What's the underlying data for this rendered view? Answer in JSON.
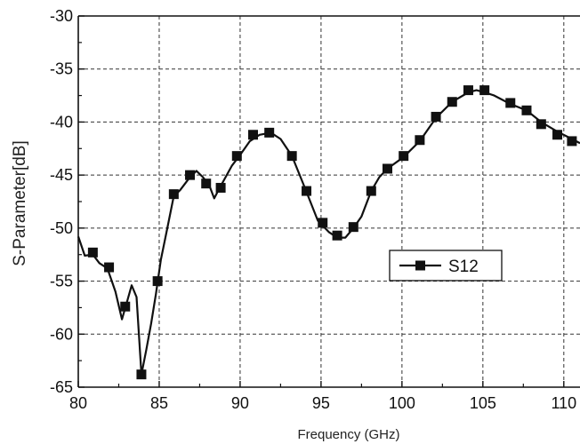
{
  "chart_data": {
    "type": "line",
    "xlabel": "Frequency (GHz)",
    "ylabel": "S-Parameter[dB]",
    "xlim": [
      80,
      111
    ],
    "ylim": [
      -65,
      -30
    ],
    "x_ticks": [
      80,
      85,
      90,
      95,
      100,
      105,
      110
    ],
    "y_ticks": [
      -30,
      -35,
      -40,
      -45,
      -50,
      -55,
      -60,
      -65
    ],
    "grid": true,
    "legend": "center-right",
    "series": [
      {
        "name": "S12",
        "color": "#111111",
        "line": [
          [
            80.0,
            -50.8
          ],
          [
            80.4,
            -52.6
          ],
          [
            80.9,
            -52.5
          ],
          [
            81.3,
            -53.3
          ],
          [
            81.8,
            -53.8
          ],
          [
            82.3,
            -56.0
          ],
          [
            82.7,
            -58.6
          ],
          [
            83.0,
            -57.0
          ],
          [
            83.3,
            -55.4
          ],
          [
            83.6,
            -56.5
          ],
          [
            83.9,
            -63.8
          ],
          [
            84.2,
            -61.5
          ],
          [
            84.5,
            -59.0
          ],
          [
            84.8,
            -56.2
          ],
          [
            85.1,
            -53.0
          ],
          [
            85.5,
            -50.0
          ],
          [
            85.9,
            -47.0
          ],
          [
            86.3,
            -46.4
          ],
          [
            86.8,
            -45.4
          ],
          [
            87.3,
            -44.6
          ],
          [
            87.7,
            -45.2
          ],
          [
            88.1,
            -46.0
          ],
          [
            88.4,
            -47.2
          ],
          [
            88.7,
            -46.3
          ],
          [
            89.1,
            -45.2
          ],
          [
            89.5,
            -44.1
          ],
          [
            90.0,
            -43.1
          ],
          [
            90.6,
            -41.8
          ],
          [
            91.2,
            -41.2
          ],
          [
            91.9,
            -41.0
          ],
          [
            92.5,
            -41.6
          ],
          [
            93.2,
            -43.2
          ],
          [
            94.0,
            -46.2
          ],
          [
            94.8,
            -49.3
          ],
          [
            95.5,
            -50.4
          ],
          [
            96.0,
            -50.9
          ],
          [
            96.5,
            -50.9
          ],
          [
            97.0,
            -50.0
          ],
          [
            97.5,
            -48.9
          ],
          [
            98.1,
            -46.5
          ],
          [
            98.6,
            -45.2
          ],
          [
            99.1,
            -44.4
          ],
          [
            100.1,
            -43.3
          ],
          [
            101.1,
            -41.8
          ],
          [
            102.1,
            -39.6
          ],
          [
            103.1,
            -38.1
          ],
          [
            104.1,
            -37.2
          ],
          [
            104.6,
            -37.0
          ],
          [
            105.1,
            -37.2
          ],
          [
            105.7,
            -37.5
          ],
          [
            106.7,
            -38.3
          ],
          [
            107.7,
            -38.9
          ],
          [
            108.6,
            -40.0
          ],
          [
            109.6,
            -40.9
          ],
          [
            110.5,
            -41.6
          ],
          [
            111.0,
            -42.0
          ]
        ],
        "markers": [
          [
            80.9,
            -52.3
          ],
          [
            81.9,
            -53.7
          ],
          [
            82.9,
            -57.4
          ],
          [
            83.9,
            -63.8
          ],
          [
            84.9,
            -55.0
          ],
          [
            85.9,
            -46.8
          ],
          [
            86.9,
            -45.0
          ],
          [
            87.9,
            -45.8
          ],
          [
            88.8,
            -46.2
          ],
          [
            89.8,
            -43.2
          ],
          [
            90.8,
            -41.2
          ],
          [
            91.8,
            -41.0
          ],
          [
            93.2,
            -43.2
          ],
          [
            94.1,
            -46.5
          ],
          [
            95.1,
            -49.5
          ],
          [
            96.0,
            -50.7
          ],
          [
            97.0,
            -49.9
          ],
          [
            98.1,
            -46.5
          ],
          [
            99.1,
            -44.4
          ],
          [
            100.1,
            -43.2
          ],
          [
            101.1,
            -41.7
          ],
          [
            102.1,
            -39.5
          ],
          [
            103.1,
            -38.1
          ],
          [
            104.1,
            -37.0
          ],
          [
            105.1,
            -37.0
          ],
          [
            106.7,
            -38.2
          ],
          [
            107.7,
            -38.9
          ],
          [
            108.6,
            -40.2
          ],
          [
            109.6,
            -41.2
          ],
          [
            110.5,
            -41.8
          ]
        ]
      }
    ]
  }
}
